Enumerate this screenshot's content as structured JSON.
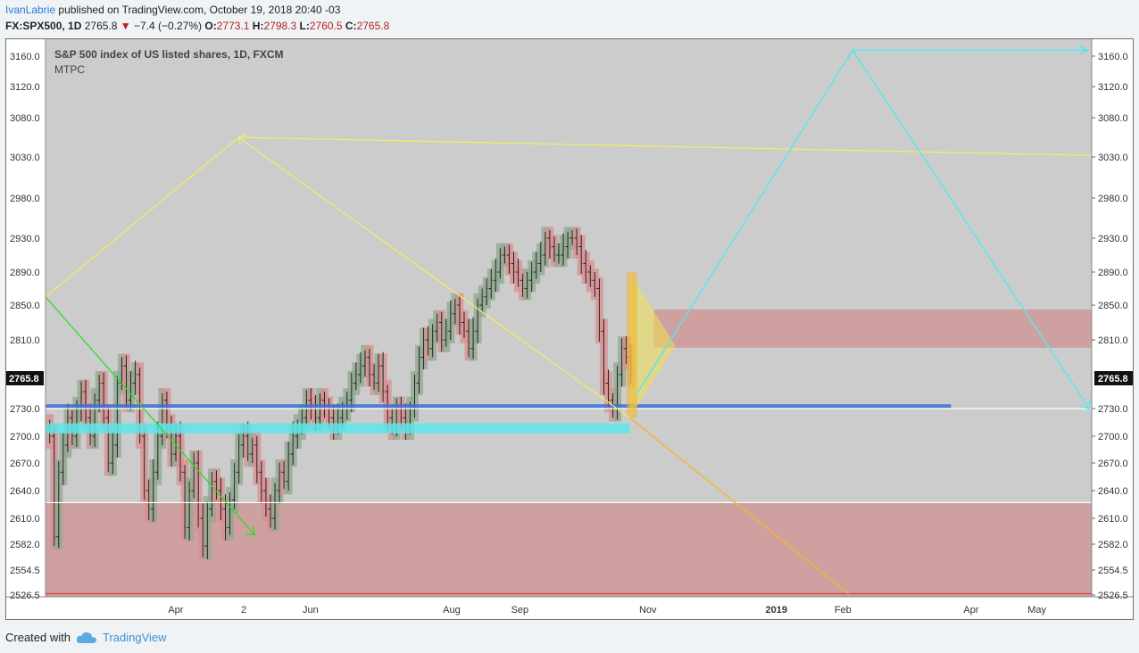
{
  "header": {
    "author": "IvanLabrie",
    "published_text": "published on TradingView.com, October 19, 2018 20:40 -03",
    "symbol": "FX:SPX500, 1D",
    "last": "2765.8",
    "change": "−7.4 (−0.27%)",
    "open_label": "O:",
    "open": "2773.1",
    "high_label": "H:",
    "high": "2798.3",
    "low_label": "L:",
    "low": "2760.5",
    "close_label": "C:",
    "close": "2765.8"
  },
  "chart_data": {
    "type": "candlestick",
    "title": "S&P 500 index of US listed shares, 1D, FXCM",
    "indicator": "MTPC",
    "ylim": [
      2526.5,
      3180
    ],
    "y_ticks": [
      "3160.0",
      "3120.0",
      "3080.0",
      "3030.0",
      "2980.0",
      "2930.0",
      "2890.0",
      "2850.0",
      "2810.0",
      "2730.0",
      "2700.0",
      "2670.0",
      "2640.0",
      "2610.0",
      "2582.0",
      "2554.5",
      "2526.5"
    ],
    "x_ticks": [
      {
        "label": "Apr",
        "t": 0.1245
      },
      {
        "label": "2",
        "t": 0.1895
      },
      {
        "label": "Jun",
        "t": 0.2533
      },
      {
        "label": "Aug",
        "t": 0.3882
      },
      {
        "label": "Sep",
        "t": 0.4534
      },
      {
        "label": "Nov",
        "t": 0.5757
      },
      {
        "label": "2019",
        "t": 0.6986,
        "bold": true
      },
      {
        "label": "Feb",
        "t": 0.7622
      },
      {
        "label": "Apr",
        "t": 0.8848
      },
      {
        "label": "May",
        "t": 0.9476
      }
    ],
    "current_price": "2765.8",
    "candles_close": [
      2700,
      2590,
      2660,
      2690,
      2720,
      2700,
      2730,
      2750,
      2720,
      2700,
      2740,
      2760,
      2720,
      2670,
      2690,
      2760,
      2780,
      2740,
      2760,
      2770,
      2700,
      2640,
      2620,
      2660,
      2700,
      2740,
      2710,
      2680,
      2700,
      2660,
      2600,
      2640,
      2670,
      2610,
      2580,
      2620,
      2650,
      2640,
      2620,
      2600,
      2630,
      2660,
      2690,
      2700,
      2680,
      2690,
      2660,
      2640,
      2620,
      2610,
      2640,
      2660,
      2650,
      2680,
      2700,
      2710,
      2720,
      2740,
      2730,
      2720,
      2740,
      2730,
      2720,
      2710,
      2720,
      2730,
      2740,
      2760,
      2770,
      2780,
      2790,
      2770,
      2760,
      2780,
      2750,
      2720,
      2710,
      2730,
      2720,
      2710,
      2730,
      2760,
      2790,
      2810,
      2800,
      2820,
      2830,
      2810,
      2820,
      2840,
      2850,
      2830,
      2820,
      2800,
      2820,
      2850,
      2860,
      2870,
      2880,
      2890,
      2910,
      2910,
      2900,
      2890,
      2880,
      2870,
      2880,
      2890,
      2900,
      2910,
      2930,
      2920,
      2910,
      2910,
      2920,
      2930,
      2930,
      2920,
      2900,
      2890,
      2880,
      2870,
      2820,
      2760,
      2740,
      2730,
      2770,
      2800,
      2790,
      2770
    ],
    "horizontal_levels": [
      {
        "name": "top-resistance",
        "value": 2730.0
      },
      {
        "name": "lower-support",
        "value": 2627.0
      },
      {
        "name": "bottom-red",
        "value": 2528.0
      }
    ],
    "zones": [
      {
        "name": "resistance-zone",
        "from": 2801,
        "to": 2845
      },
      {
        "name": "support-zone",
        "from": 2526.5,
        "to": 2627
      }
    ],
    "colors": {
      "up": "#8fa88f",
      "down": "#d98f8f",
      "zone_red": "#cf9b9b",
      "cyan": "#5ce6ea",
      "yellow": "#f5ef5c",
      "green": "#22dd22",
      "blue": "#3b6fd6",
      "orange": "#f2b62e"
    }
  },
  "footer": {
    "created_with": "Created with",
    "brand": "TradingView"
  }
}
